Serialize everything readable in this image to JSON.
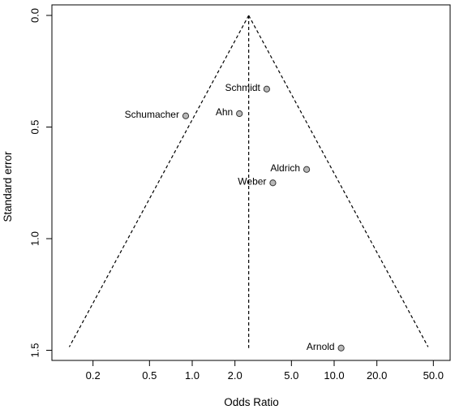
{
  "chart_data": {
    "type": "scatter",
    "title": "",
    "xlabel": "Odds Ratio",
    "ylabel": "Standard error",
    "x_scale": "log",
    "y_reversed": true,
    "xlim": [
      0.13,
      55
    ],
    "ylim": [
      0.0,
      1.5
    ],
    "x_ticks": [
      0.2,
      0.5,
      1.0,
      2.0,
      5.0,
      10.0,
      20.0,
      50.0
    ],
    "x_tick_labels": [
      "0.2",
      "0.5",
      "1.0",
      "2.0",
      "5.0",
      "10.0",
      "20.0",
      "50.0"
    ],
    "y_ticks": [
      0.0,
      0.5,
      1.0,
      1.5
    ],
    "y_tick_labels": [
      "0.0",
      "0.5",
      "1.0",
      "1.5"
    ],
    "grid": false,
    "pooled_estimate": 2.5,
    "points": [
      {
        "label": "Schmidt",
        "x": 3.35,
        "y": 0.33
      },
      {
        "label": "Schumacher",
        "x": 0.9,
        "y": 0.45
      },
      {
        "label": "Ahn",
        "x": 2.15,
        "y": 0.44
      },
      {
        "label": "Aldrich",
        "x": 6.4,
        "y": 0.69
      },
      {
        "label": "Weber",
        "x": 3.7,
        "y": 0.75
      },
      {
        "label": "Arnold",
        "x": 11.2,
        "y": 1.49
      }
    ],
    "colors": {
      "point_fill": "#b8b8b8",
      "point_stroke": "#333333",
      "lines": "#000000"
    }
  }
}
